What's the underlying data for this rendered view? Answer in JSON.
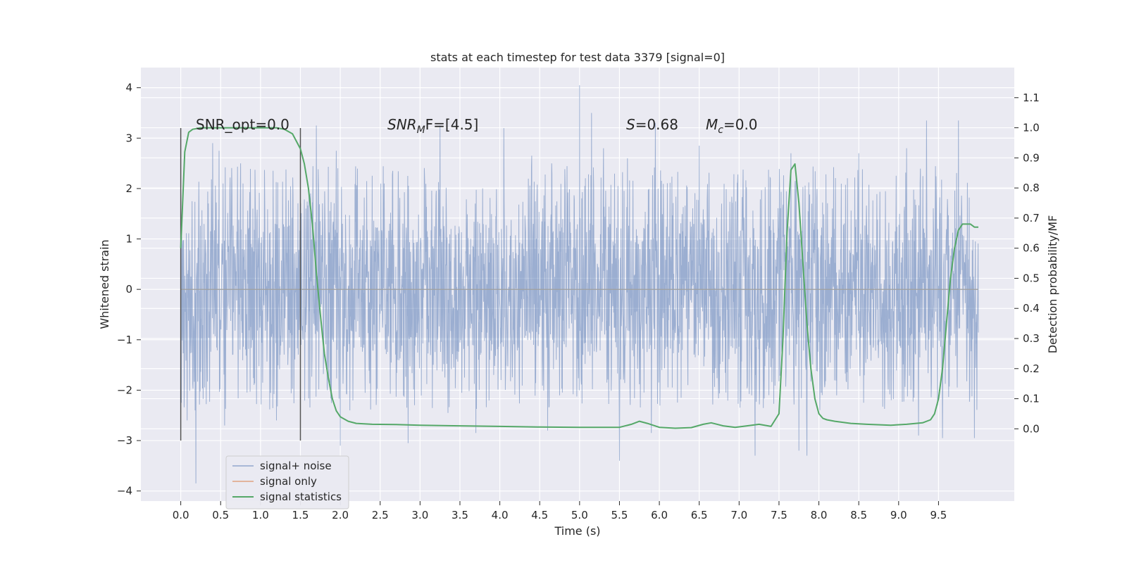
{
  "chart_data": {
    "type": "line",
    "title": "stats at each timestep for test data 3379 [signal=0]",
    "xlabel": "Time (s)",
    "ylabel": "Whitened strain",
    "y2label": "Detection probability/MF",
    "xlim": [
      -0.5,
      10.45
    ],
    "ylim": [
      -4.2,
      4.4
    ],
    "y2lim": [
      -0.24,
      1.2
    ],
    "xticks": [
      0.0,
      0.5,
      1.0,
      1.5,
      2.0,
      2.5,
      3.0,
      3.5,
      4.0,
      4.5,
      5.0,
      5.5,
      6.0,
      6.5,
      7.0,
      7.5,
      8.0,
      8.5,
      9.0,
      9.5
    ],
    "xtick_labels": [
      "0.0",
      "0.5",
      "1.0",
      "1.5",
      "2.0",
      "2.5",
      "3.0",
      "3.5",
      "4.0",
      "4.5",
      "5.0",
      "5.5",
      "6.0",
      "6.5",
      "7.0",
      "7.5",
      "8.0",
      "8.5",
      "9.0",
      "9.5"
    ],
    "yticks": [
      4,
      3,
      2,
      1,
      0,
      -1,
      -2,
      -3,
      -4
    ],
    "ytick_labels": [
      "4",
      "3",
      "2",
      "1",
      "0",
      "−1",
      "−2",
      "−3",
      "−4"
    ],
    "y2ticks": [
      1.1,
      1.0,
      0.9,
      0.8,
      0.7,
      0.6,
      0.5,
      0.4,
      0.3,
      0.2,
      0.1,
      0.0
    ],
    "y2tick_labels": [
      "1.1",
      "1.0",
      "0.9",
      "0.8",
      "0.7",
      "0.6",
      "0.5",
      "0.4",
      "0.3",
      "0.2",
      "0.1",
      "0.0"
    ],
    "grid": true,
    "legend_position": "lower-left",
    "annotations": {
      "snr_opt": "SNR_opt=0.0",
      "snr_mf_main": "SNR",
      "snr_mf_sub": "M",
      "snr_mf_rest": "F=[4.5]",
      "s_label": "S",
      "s_value": "=0.68",
      "mc_label": "M",
      "mc_sub": "c",
      "mc_value": "=0.0"
    },
    "vlines": [
      {
        "x": 0.0,
        "ymin": -3.0,
        "ymax": 3.2
      },
      {
        "x": 1.5,
        "ymin": -3.0,
        "ymax": 3.2
      }
    ],
    "series": [
      {
        "name": "signal+ noise",
        "axis": "left",
        "color": "#4c72b0",
        "kind": "noise",
        "x_range": [
          0.0,
          10.0
        ],
        "envelope": [
          -1.3,
          1.35
        ],
        "spikes": [
          {
            "x": 0.08,
            "y": -2.6
          },
          {
            "x": 0.18,
            "y": -2.4
          },
          {
            "x": 0.19,
            "y": -3.85
          },
          {
            "x": 0.4,
            "y": 2.9
          },
          {
            "x": 0.48,
            "y": 2.75
          },
          {
            "x": 0.55,
            "y": -2.7
          },
          {
            "x": 0.75,
            "y": 2.5
          },
          {
            "x": 1.2,
            "y": -2.6
          },
          {
            "x": 1.7,
            "y": 3.25
          },
          {
            "x": 1.95,
            "y": 2.75
          },
          {
            "x": 2.0,
            "y": -3.1
          },
          {
            "x": 2.12,
            "y": -2.4
          },
          {
            "x": 2.55,
            "y": 2.1
          },
          {
            "x": 2.85,
            "y": 2.3
          },
          {
            "x": 2.85,
            "y": -3.05
          },
          {
            "x": 3.25,
            "y": 3.25
          },
          {
            "x": 3.35,
            "y": -2.45
          },
          {
            "x": 3.7,
            "y": -2.85
          },
          {
            "x": 4.05,
            "y": 3.2
          },
          {
            "x": 4.4,
            "y": 2.65
          },
          {
            "x": 4.6,
            "y": -2.8
          },
          {
            "x": 4.65,
            "y": 2.5
          },
          {
            "x": 5.0,
            "y": 4.05
          },
          {
            "x": 5.15,
            "y": 3.5
          },
          {
            "x": 5.3,
            "y": 2.8
          },
          {
            "x": 5.5,
            "y": -3.4
          },
          {
            "x": 5.6,
            "y": 2.6
          },
          {
            "x": 5.95,
            "y": 3.3
          },
          {
            "x": 5.9,
            "y": -2.85
          },
          {
            "x": 6.5,
            "y": 2.85
          },
          {
            "x": 7.2,
            "y": -3.3
          },
          {
            "x": 7.65,
            "y": 2.7
          },
          {
            "x": 7.75,
            "y": -3.2
          },
          {
            "x": 7.85,
            "y": -3.3
          },
          {
            "x": 8.5,
            "y": 2.7
          },
          {
            "x": 9.1,
            "y": 2.8
          },
          {
            "x": 9.25,
            "y": -2.9
          },
          {
            "x": 9.35,
            "y": 3.35
          },
          {
            "x": 9.55,
            "y": -2.95
          },
          {
            "x": 9.75,
            "y": 3.35
          },
          {
            "x": 9.95,
            "y": -2.95
          }
        ]
      },
      {
        "name": "signal only",
        "axis": "left",
        "color": "#dd8452",
        "x": [
          0.0,
          10.0
        ],
        "y": [
          0.0,
          0.0
        ]
      },
      {
        "name": "signal statistics",
        "axis": "right",
        "color": "#55a868",
        "x": [
          0.0,
          0.05,
          0.1,
          0.15,
          0.25,
          0.4,
          0.7,
          1.0,
          1.2,
          1.3,
          1.4,
          1.5,
          1.55,
          1.6,
          1.65,
          1.7,
          1.75,
          1.8,
          1.85,
          1.9,
          1.95,
          2.0,
          2.1,
          2.2,
          2.4,
          2.7,
          3.0,
          3.5,
          4.0,
          4.5,
          5.0,
          5.5,
          5.65,
          5.75,
          5.85,
          6.0,
          6.2,
          6.4,
          6.55,
          6.65,
          6.8,
          6.95,
          7.1,
          7.25,
          7.4,
          7.5,
          7.55,
          7.6,
          7.65,
          7.7,
          7.75,
          7.8,
          7.85,
          7.9,
          7.95,
          8.0,
          8.05,
          8.1,
          8.2,
          8.4,
          8.6,
          8.9,
          9.1,
          9.3,
          9.4,
          9.45,
          9.5,
          9.55,
          9.6,
          9.65,
          9.7,
          9.75,
          9.8,
          9.85,
          9.9,
          9.95,
          10.0
        ],
        "y": [
          0.6,
          0.92,
          0.985,
          0.995,
          1.0,
          1.0,
          1.0,
          1.0,
          1.0,
          0.995,
          0.98,
          0.93,
          0.88,
          0.8,
          0.68,
          0.52,
          0.38,
          0.25,
          0.17,
          0.1,
          0.06,
          0.04,
          0.025,
          0.018,
          0.015,
          0.014,
          0.012,
          0.01,
          0.008,
          0.006,
          0.005,
          0.005,
          0.015,
          0.025,
          0.018,
          0.005,
          0.002,
          0.004,
          0.015,
          0.02,
          0.01,
          0.005,
          0.01,
          0.015,
          0.008,
          0.05,
          0.3,
          0.65,
          0.86,
          0.88,
          0.75,
          0.55,
          0.35,
          0.2,
          0.1,
          0.05,
          0.035,
          0.03,
          0.025,
          0.018,
          0.015,
          0.012,
          0.015,
          0.02,
          0.03,
          0.05,
          0.1,
          0.2,
          0.35,
          0.5,
          0.6,
          0.66,
          0.68,
          0.68,
          0.68,
          0.67,
          0.67
        ]
      }
    ]
  }
}
